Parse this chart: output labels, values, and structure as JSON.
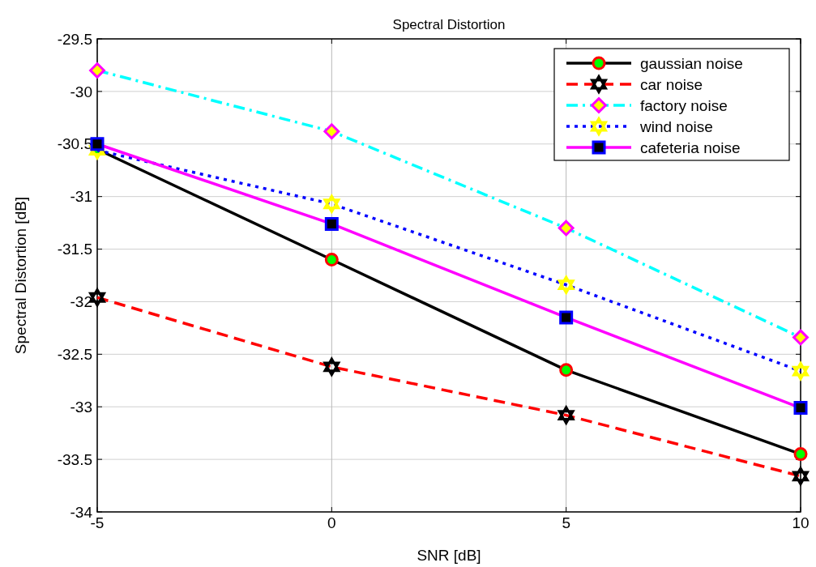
{
  "chart_data": {
    "type": "line",
    "title": "Spectral Distortion",
    "xlabel": "SNR [dB]",
    "ylabel": "Spectral Distortion [dB]",
    "x": [
      -5,
      0,
      5,
      10
    ],
    "xlim": [
      -5,
      10
    ],
    "xticks": [
      -5,
      0,
      5,
      10
    ],
    "ylim": [
      -34,
      -29.5
    ],
    "yticks": [
      -34,
      -33.5,
      -33,
      -32.5,
      -32,
      -31.5,
      -31,
      -30.5,
      -30,
      -29.5
    ],
    "grid": true,
    "legend": "top right",
    "series": [
      {
        "name": "gaussian noise",
        "color": "#000000",
        "line_style": "solid",
        "marker": "circle",
        "values": [
          -30.55,
          -31.6,
          -32.65,
          -33.45
        ]
      },
      {
        "name": "car noise",
        "color": "#ff0000",
        "line_style": "dashed",
        "marker": "star",
        "values": [
          -31.96,
          -32.62,
          -33.08,
          -33.66
        ]
      },
      {
        "name": "factory noise",
        "color": "#00ffff",
        "line_style": "dashdot",
        "marker": "diamond",
        "values": [
          -29.8,
          -30.38,
          -31.3,
          -32.34
        ]
      },
      {
        "name": "wind noise",
        "color": "#0000ff",
        "line_style": "dotted",
        "marker": "star",
        "values": [
          -30.56,
          -31.07,
          -31.84,
          -32.66
        ]
      },
      {
        "name": "cafeteria noise",
        "color": "#ff00ff",
        "line_style": "solid",
        "marker": "square",
        "values": [
          -30.5,
          -31.26,
          -32.15,
          -33.01
        ]
      }
    ]
  }
}
